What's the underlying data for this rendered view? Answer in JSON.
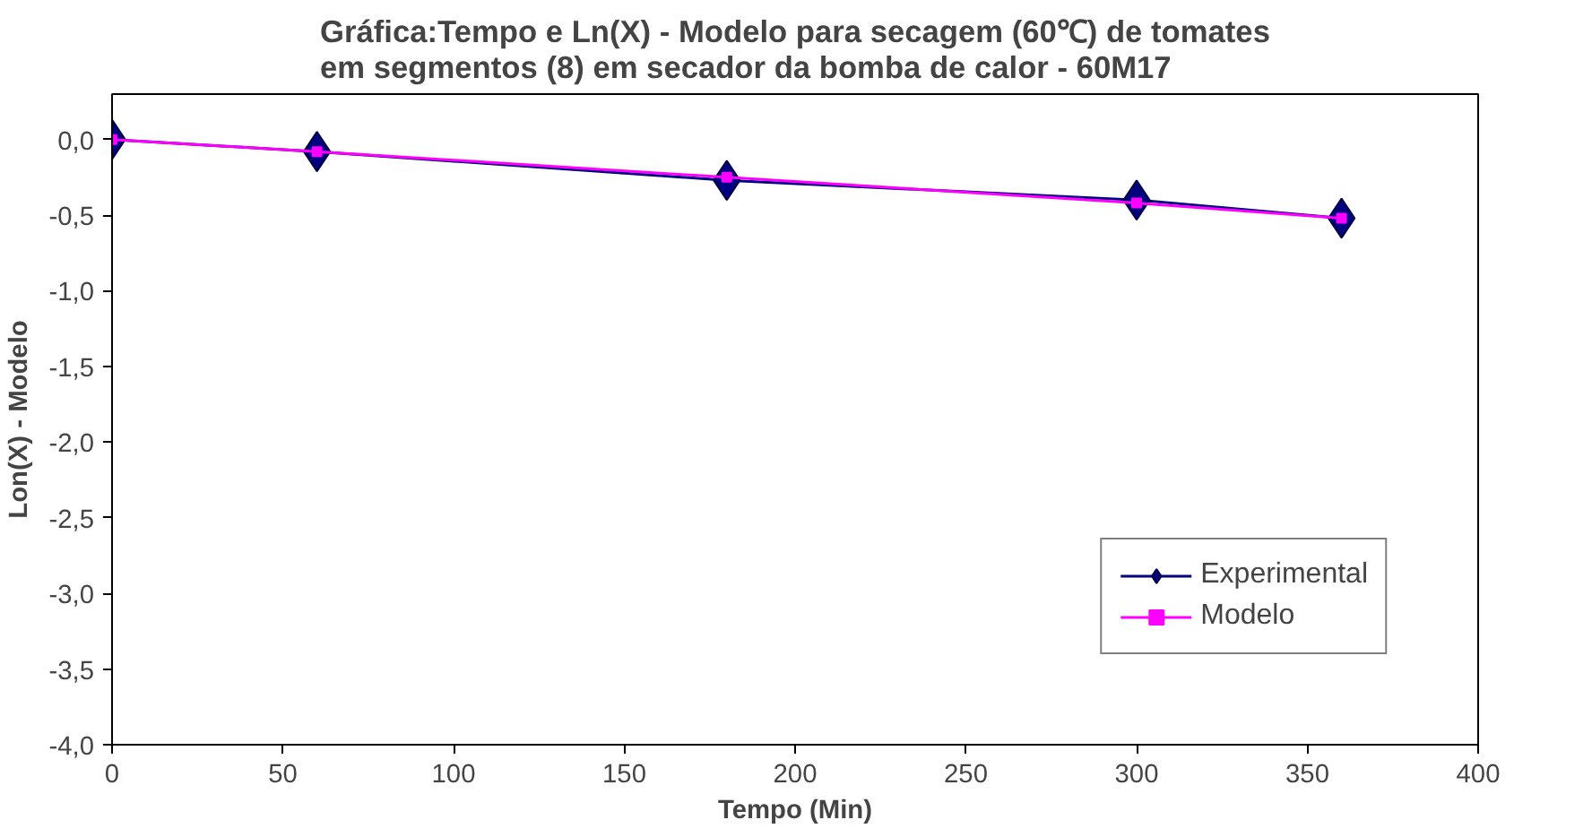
{
  "chart_data": {
    "type": "line",
    "title": "Gráfica:Tempo e Ln(X) - Modelo para secagem (60℃) de tomates\nem segmentos (8) em secador da bomba de calor - 60M17",
    "xlabel": "Tempo (Min)",
    "ylabel": "Lon(X) - Modelo",
    "x": [
      0,
      60,
      180,
      300,
      360
    ],
    "series": [
      {
        "name": "Experimental",
        "color": "#000080",
        "marker": "diamond",
        "values": [
          0.0,
          -0.08,
          -0.27,
          -0.4,
          -0.52
        ]
      },
      {
        "name": "Modelo",
        "color": "#ff00ff",
        "marker": "square",
        "values": [
          0.0,
          -0.08,
          -0.25,
          -0.42,
          -0.52
        ]
      }
    ],
    "xlim": [
      0,
      400
    ],
    "xticks": [
      0,
      50,
      100,
      150,
      200,
      250,
      300,
      350,
      400
    ],
    "ylim": [
      -4.0,
      0.3
    ],
    "yticks": [
      {
        "value": 0.0,
        "label": "0,0"
      },
      {
        "value": -0.5,
        "label": "-0,5"
      },
      {
        "value": -1.0,
        "label": "-1,0"
      },
      {
        "value": -1.5,
        "label": "-1,5"
      },
      {
        "value": -2.0,
        "label": "-2,0"
      },
      {
        "value": -2.5,
        "label": "-2,5"
      },
      {
        "value": -3.0,
        "label": "-3,0"
      },
      {
        "value": -3.5,
        "label": "-3,5"
      },
      {
        "value": -4.0,
        "label": "-4,0"
      }
    ],
    "grid": false,
    "legend": "bottom right"
  }
}
